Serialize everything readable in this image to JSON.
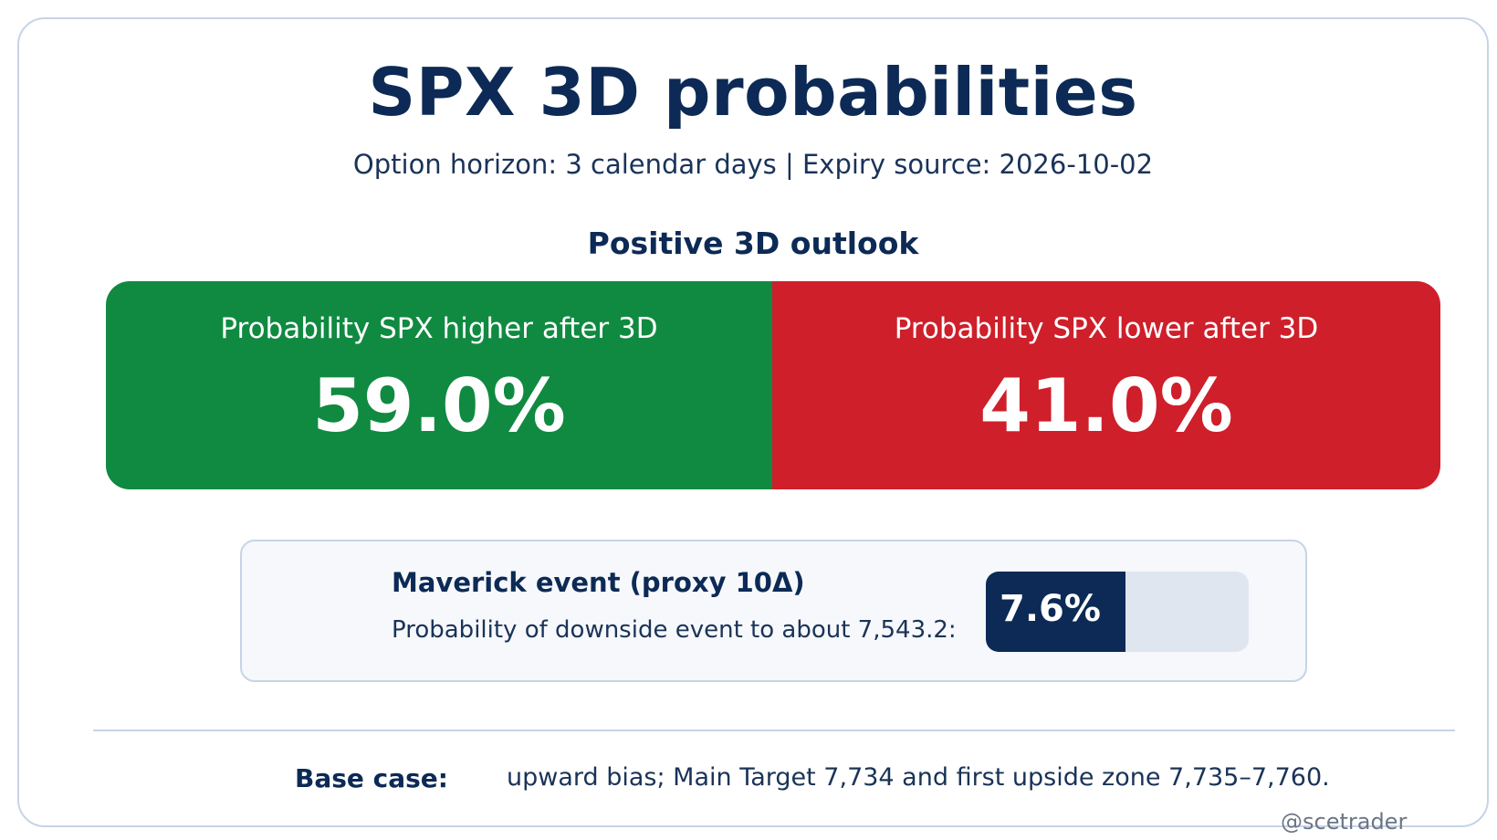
{
  "header": {
    "title": "SPX 3D probabilities",
    "subtitle": "Option horizon: 3 calendar days | Expiry source: 2026-10-02"
  },
  "outlook": {
    "heading": "Positive 3D outlook"
  },
  "probabilities": {
    "higher": {
      "label": "Probability SPX higher after 3D",
      "value": "59.0%",
      "color": "#108a41"
    },
    "lower": {
      "label": "Probability SPX lower after 3D",
      "value": "41.0%",
      "color": "#ce1f2b"
    }
  },
  "maverick": {
    "title": "Maverick event (proxy 10Δ)",
    "description": "Probability of downside event to about 7,543.2:",
    "value": "7.6%",
    "fill_fraction": 0.53,
    "fill_color": "#0c2a55",
    "track_color": "#dfe6f0"
  },
  "base_case": {
    "label": "Base case:",
    "text": "upward bias; Main Target 7,734 and first upside zone 7,735–7,760."
  },
  "footer": {
    "handle": "@scetrader"
  },
  "colors": {
    "primary": "#0c2a55",
    "border": "#c7d4e6"
  }
}
